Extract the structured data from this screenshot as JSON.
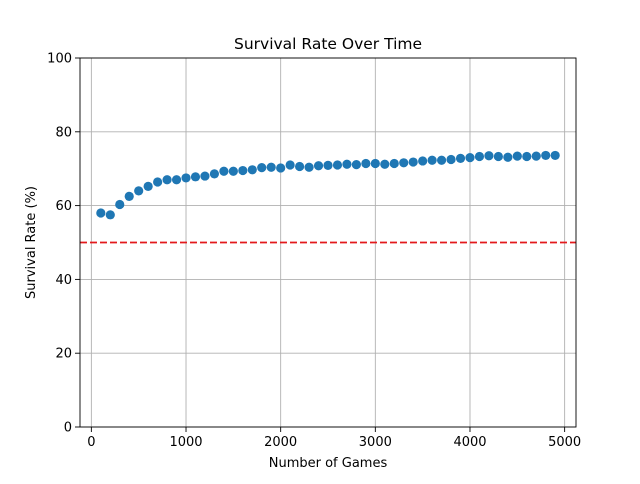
{
  "chart_data": {
    "type": "scatter",
    "title": "Survival Rate Over Time",
    "xlabel": "Number of Games",
    "ylabel": "Survival Rate (%)",
    "xlim": [
      -120,
      5120
    ],
    "ylim": [
      0,
      100
    ],
    "xticks": [
      0,
      1000,
      2000,
      3000,
      4000,
      5000
    ],
    "xtick_labels": [
      "0",
      "1000",
      "2000",
      "3000",
      "4000",
      "5000"
    ],
    "yticks": [
      0,
      20,
      40,
      60,
      80,
      100
    ],
    "ytick_labels": [
      "0",
      "20",
      "40",
      "60",
      "80",
      "100"
    ],
    "grid": true,
    "point_color": "#1f77b4",
    "reference_line": {
      "y": 50,
      "color": "#e31a1c",
      "style": "dashed"
    },
    "series": [
      {
        "x": [
          100,
          200,
          300,
          400,
          500,
          600,
          700,
          800,
          900,
          1000,
          1100,
          1200,
          1300,
          1400,
          1500,
          1600,
          1700,
          1800,
          1900,
          2000,
          2100,
          2200,
          2300,
          2400,
          2500,
          2600,
          2700,
          2800,
          2900,
          3000,
          3100,
          3200,
          3300,
          3400,
          3500,
          3600,
          3700,
          3800,
          3900,
          4000,
          4100,
          4200,
          4300,
          4400,
          4500,
          4600,
          4700,
          4800,
          4900
        ],
        "y": [
          58.0,
          57.5,
          60.3,
          62.5,
          64.0,
          65.2,
          66.4,
          67.0,
          67.0,
          67.5,
          67.8,
          68.0,
          68.6,
          69.3,
          69.3,
          69.5,
          69.7,
          70.3,
          70.4,
          70.2,
          71.0,
          70.6,
          70.4,
          70.8,
          70.9,
          71.0,
          71.2,
          71.1,
          71.4,
          71.4,
          71.2,
          71.4,
          71.6,
          71.8,
          72.1,
          72.3,
          72.3,
          72.5,
          72.8,
          73.0,
          73.3,
          73.5,
          73.3,
          73.1,
          73.4,
          73.3,
          73.4,
          73.6,
          73.6
        ]
      }
    ]
  }
}
